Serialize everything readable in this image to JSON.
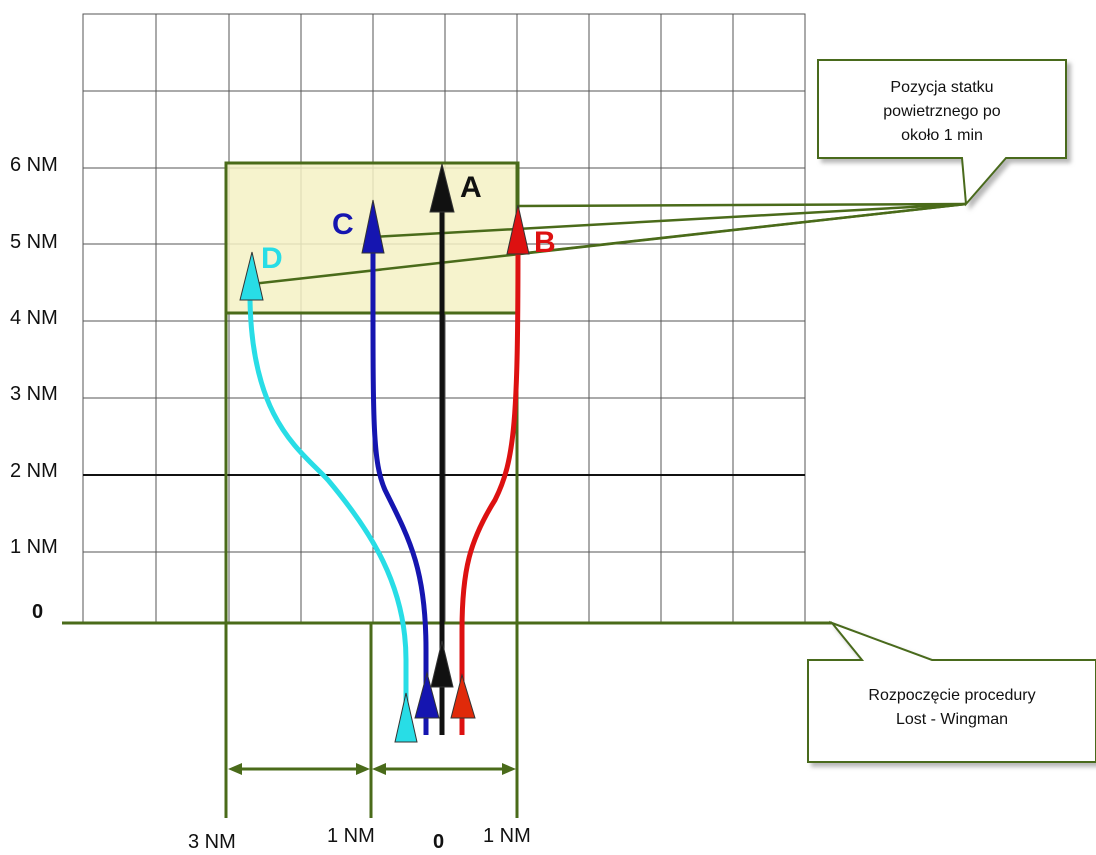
{
  "y_axis": {
    "labels": [
      "0",
      "1 NM",
      "2 NM",
      "3 NM",
      "4 NM",
      "5 NM",
      "6 NM"
    ]
  },
  "x_axis": {
    "labels": [
      "3 NM",
      "1 NM",
      "0",
      "1 NM"
    ]
  },
  "tracks": [
    {
      "id": "A",
      "label": "A",
      "color": "#111111"
    },
    {
      "id": "B",
      "label": "B",
      "color": "#dd1111"
    },
    {
      "id": "C",
      "label": "C",
      "color": "#1515b0"
    },
    {
      "id": "D",
      "label": "D",
      "color": "#28dde6"
    }
  ],
  "callouts": {
    "position": {
      "lines": [
        "Pozycja statku",
        "powietrznego po",
        "około 1 min"
      ]
    },
    "start": {
      "lines": [
        "Rozpoczęcie procedury",
        "Lost - Wingman"
      ]
    }
  },
  "colors": {
    "grid": "#555555",
    "green": "#4a6b1a",
    "box_fill": "#f4f1c4"
  }
}
